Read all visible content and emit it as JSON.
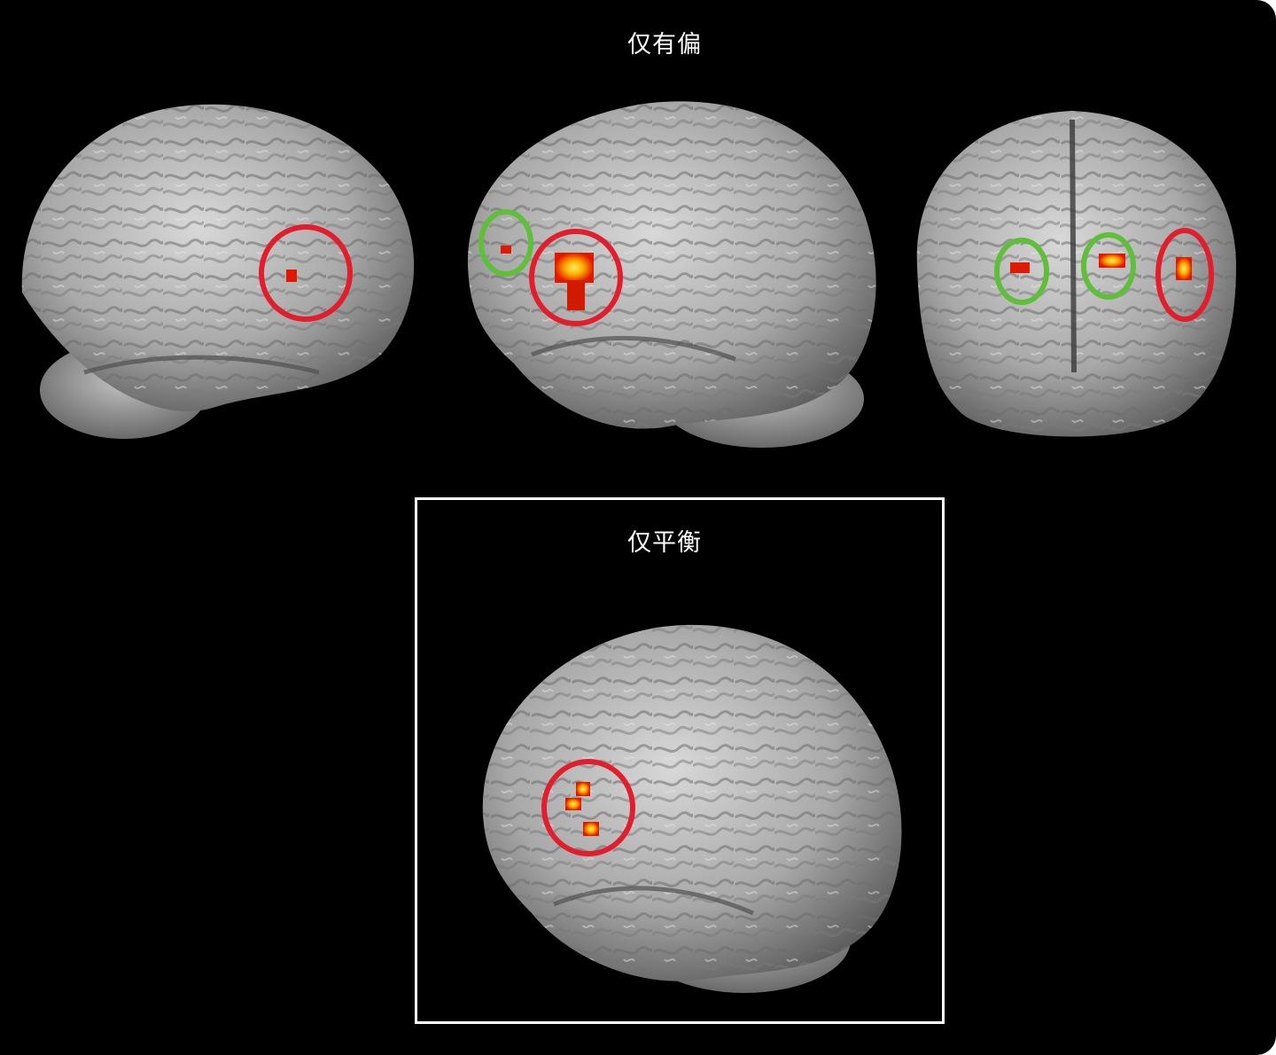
{
  "figure": {
    "top_title": "仅有偏",
    "bottom_title": "仅平衡"
  },
  "colors": {
    "background": "#000000",
    "brain": "#b9b9b9",
    "activation_hot": "#ff2a00",
    "activation_peak": "#ffe000",
    "circle_red": "#e21e2d",
    "circle_green": "#5fbf3a",
    "frame": "#ffffff"
  },
  "views": [
    {
      "name": "left-lateral",
      "highlights": [
        "red"
      ]
    },
    {
      "name": "right-lateral",
      "highlights": [
        "green",
        "red"
      ]
    },
    {
      "name": "anterior",
      "highlights": [
        "green",
        "green",
        "red"
      ]
    },
    {
      "name": "inset-right-lateral",
      "highlights": [
        "red"
      ]
    }
  ]
}
